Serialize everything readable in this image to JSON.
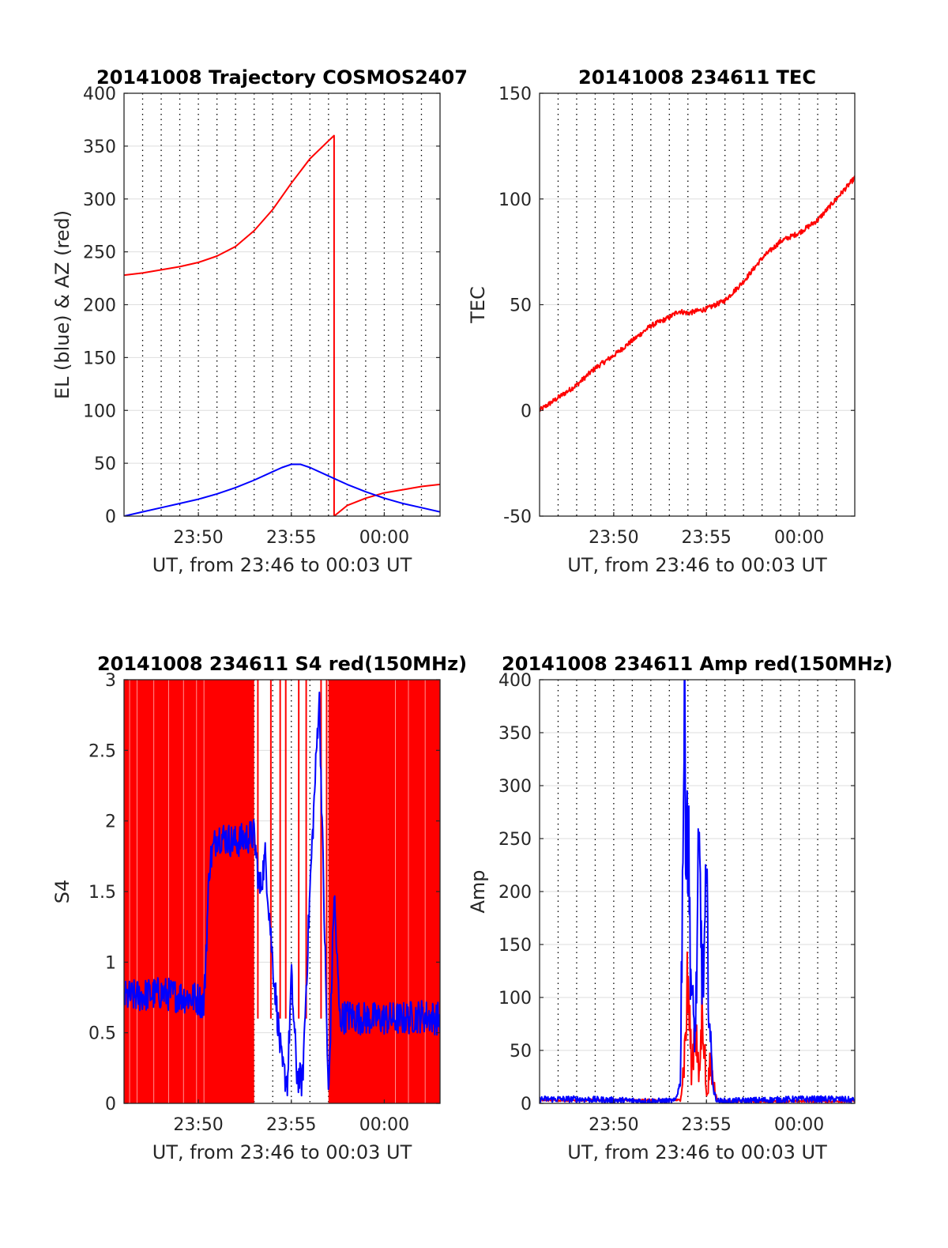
{
  "colors": {
    "red": "#ff0000",
    "blue": "#0000ff",
    "axis": "#262626",
    "grid": "#000000",
    "text": "#262626"
  },
  "chart_data": [
    {
      "type": "line",
      "title": "20141008 Trajectory COSMOS2407",
      "xlabel": "UT, from 23:46 to 00:03 UT",
      "ylabel": "EL (blue) & AZ (red)",
      "xlim": [
        0,
        17
      ],
      "ylim": [
        0,
        400
      ],
      "xticks": [
        4,
        9,
        14
      ],
      "xticklabels": [
        "23:50",
        "23:55",
        "00:00"
      ],
      "yticks": [
        0,
        50,
        100,
        150,
        200,
        250,
        300,
        350,
        400
      ],
      "yticklabels": [
        "0",
        "50",
        "100",
        "150",
        "200",
        "250",
        "300",
        "350",
        "400"
      ],
      "grid": "vertical-dotted",
      "series": [
        {
          "color": "red",
          "x": [
            0,
            1,
            2,
            3,
            4,
            5,
            6,
            7,
            8,
            9,
            10,
            11,
            11.3,
            11.3,
            12,
            13,
            14,
            15,
            16,
            17
          ],
          "y": [
            228,
            230,
            233,
            236,
            240,
            246,
            255,
            270,
            290,
            315,
            338,
            355,
            360,
            0,
            10,
            17,
            22,
            25,
            28,
            30
          ]
        },
        {
          "color": "blue",
          "x": [
            0,
            1,
            2,
            3,
            4,
            5,
            6,
            7,
            8,
            8.5,
            9,
            9.5,
            10,
            11,
            12,
            13,
            14,
            15,
            16,
            17
          ],
          "y": [
            0,
            4,
            8,
            12,
            16,
            21,
            27,
            34,
            42,
            46,
            49,
            49,
            46,
            38,
            30,
            23,
            17,
            12,
            8,
            4
          ]
        }
      ]
    },
    {
      "type": "line",
      "title": "20141008 234611 TEC",
      "xlabel": "UT, from 23:46 to 00:03 UT",
      "ylabel": "TEC",
      "xlim": [
        0,
        17
      ],
      "ylim": [
        -50,
        150
      ],
      "xticks": [
        4,
        9,
        14
      ],
      "xticklabels": [
        "23:50",
        "23:55",
        "00:00"
      ],
      "yticks": [
        -50,
        0,
        50,
        100,
        150
      ],
      "yticklabels": [
        "-50",
        "0",
        "50",
        "100",
        "150"
      ],
      "grid": "vertical-dotted",
      "series": [
        {
          "color": "red",
          "x": [
            0,
            1,
            2,
            3,
            4,
            5,
            6,
            7,
            7.5,
            8,
            9,
            10,
            11,
            12,
            13,
            14,
            15,
            16,
            17
          ],
          "y": [
            0,
            6,
            12,
            20,
            26,
            33,
            40,
            44,
            47,
            46,
            48,
            52,
            61,
            72,
            80,
            84,
            90,
            100,
            110
          ]
        }
      ]
    },
    {
      "type": "line",
      "title": "20141008 234611 S4 red(150MHz)",
      "xlabel": "UT, from 23:46 to 00:03 UT",
      "ylabel": "S4",
      "xlim": [
        0,
        17
      ],
      "ylim": [
        0,
        3
      ],
      "xticks": [
        4,
        9,
        14
      ],
      "xticklabels": [
        "23:50",
        "23:55",
        "00:00"
      ],
      "yticks": [
        0,
        0.5,
        1,
        1.5,
        2,
        2.5,
        3
      ],
      "yticklabels": [
        "0",
        "0.5",
        "1",
        "1.5",
        "2",
        "2.5",
        "3"
      ],
      "grid": "vertical-dotted",
      "series": [
        {
          "color": "red",
          "kind": "band",
          "x": [
            0,
            7,
            7,
            11,
            11,
            17
          ],
          "y_low": [
            0,
            0,
            null,
            null,
            0,
            0
          ],
          "y_high": [
            3,
            3,
            null,
            null,
            3,
            3
          ]
        },
        {
          "color": "blue",
          "x": [
            0,
            2,
            4,
            4.3,
            4.6,
            5,
            6,
            7,
            7.3,
            7.6,
            8,
            8.5,
            8.8,
            9,
            9.3,
            9.6,
            10,
            10.5,
            11,
            11.3,
            11.6,
            12,
            13,
            14,
            15,
            16,
            17
          ],
          "y": [
            0.75,
            0.78,
            0.74,
            0.7,
            1.7,
            1.9,
            1.85,
            1.9,
            1.5,
            1.75,
            1.0,
            0.25,
            0.15,
            0.9,
            0.2,
            0.15,
            1.5,
            2.9,
            0,
            1.5,
            0.6,
            0.62,
            0.6,
            0.6,
            0.6,
            0.62,
            0.6
          ]
        }
      ]
    },
    {
      "type": "line",
      "title": "20141008 234611 Amp red(150MHz)",
      "xlabel": "UT, from 23:46 to 00:03 UT",
      "ylabel": "Amp",
      "xlim": [
        0,
        17
      ],
      "ylim": [
        0,
        400
      ],
      "xticks": [
        4,
        9,
        14
      ],
      "xticklabels": [
        "23:50",
        "23:55",
        "00:00"
      ],
      "yticks": [
        0,
        50,
        100,
        150,
        200,
        250,
        300,
        350,
        400
      ],
      "yticklabels": [
        "0",
        "50",
        "100",
        "150",
        "200",
        "250",
        "300",
        "350",
        "400"
      ],
      "grid": "vertical-dotted",
      "series": [
        {
          "color": "red",
          "x": [
            0,
            7.6,
            7.8,
            8.0,
            8.2,
            8.4,
            8.6,
            8.8,
            9.0,
            9.2,
            9.6,
            17
          ],
          "y": [
            3,
            3,
            40,
            115,
            30,
            80,
            20,
            100,
            5,
            35,
            2,
            2
          ]
        },
        {
          "color": "blue",
          "x": [
            0,
            2,
            4,
            6,
            7.3,
            7.6,
            7.75,
            7.85,
            8.0,
            8.2,
            8.4,
            8.5,
            8.6,
            8.8,
            9.0,
            9.2,
            9.4,
            9.6,
            10,
            12,
            14,
            16,
            17
          ],
          "y": [
            4,
            4,
            3,
            2,
            2,
            20,
            300,
            345,
            250,
            100,
            60,
            150,
            225,
            110,
            190,
            60,
            10,
            2,
            2,
            3,
            4,
            4,
            3
          ]
        }
      ]
    }
  ]
}
